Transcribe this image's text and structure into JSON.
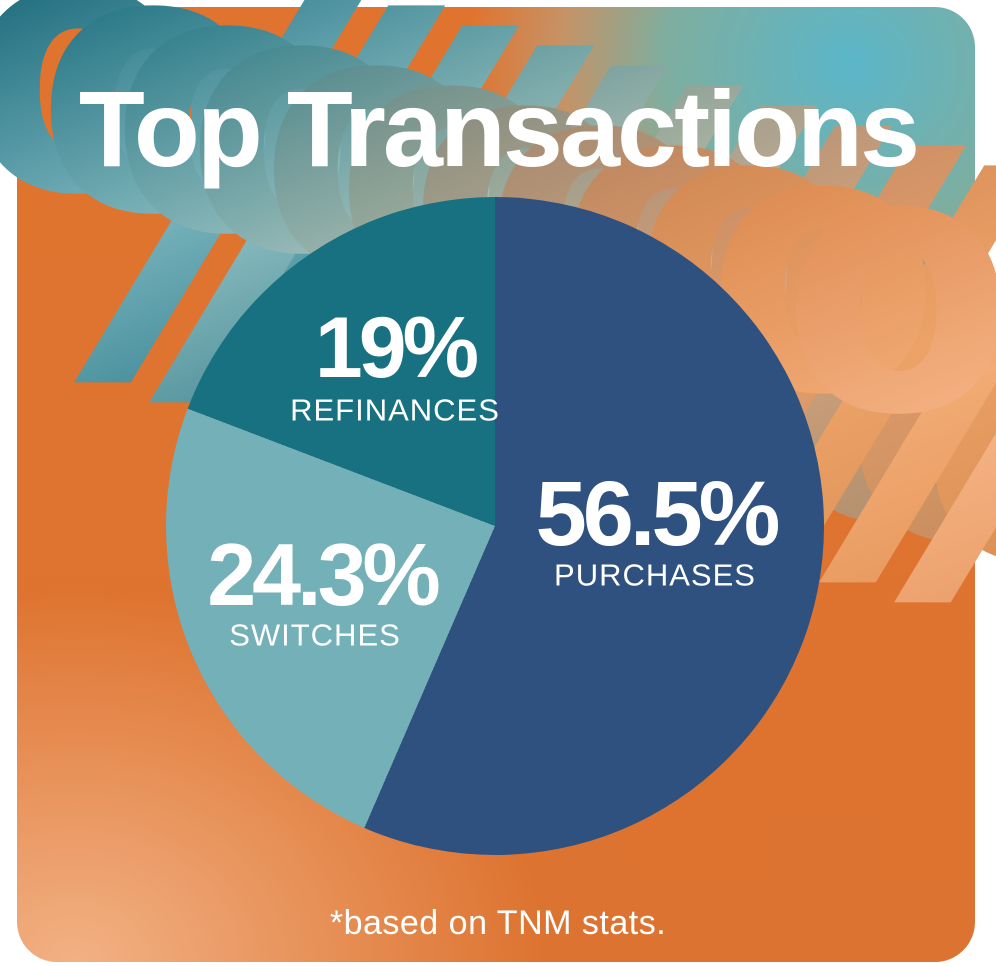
{
  "title": "Top Transactions",
  "footnote": "*based on TNM stats.",
  "decor": {
    "glyph": "%"
  },
  "slices": {
    "purchases": {
      "value": "56.5%",
      "label": "PURCHASES"
    },
    "switches": {
      "value": "24.3%",
      "label": "SWITCHES"
    },
    "refinances": {
      "value": "19%",
      "label": "REFINANCES"
    }
  },
  "palette": {
    "purchases_blue": "#2f5180",
    "switches_light_blue": "#74b0b7",
    "refinances_teal": "#177180",
    "background_orange": "#dd7330",
    "background_peach": "#f2b184",
    "background_teal": "#5bb6c9",
    "text_white": "#ffffff"
  },
  "chart_data": {
    "type": "pie",
    "title": "Top Transactions",
    "categories": [
      "PURCHASES",
      "SWITCHES",
      "REFINANCES"
    ],
    "values": [
      56.5,
      24.3,
      19
    ],
    "value_labels": [
      "56.5%",
      "24.3%",
      "19%"
    ],
    "colors": [
      "#2f5180",
      "#74b0b7",
      "#177180"
    ],
    "start_angle_deg": 0,
    "direction": "clockwise",
    "legend_position": "labels-inside-slices",
    "footnote": "*based on TNM stats."
  }
}
